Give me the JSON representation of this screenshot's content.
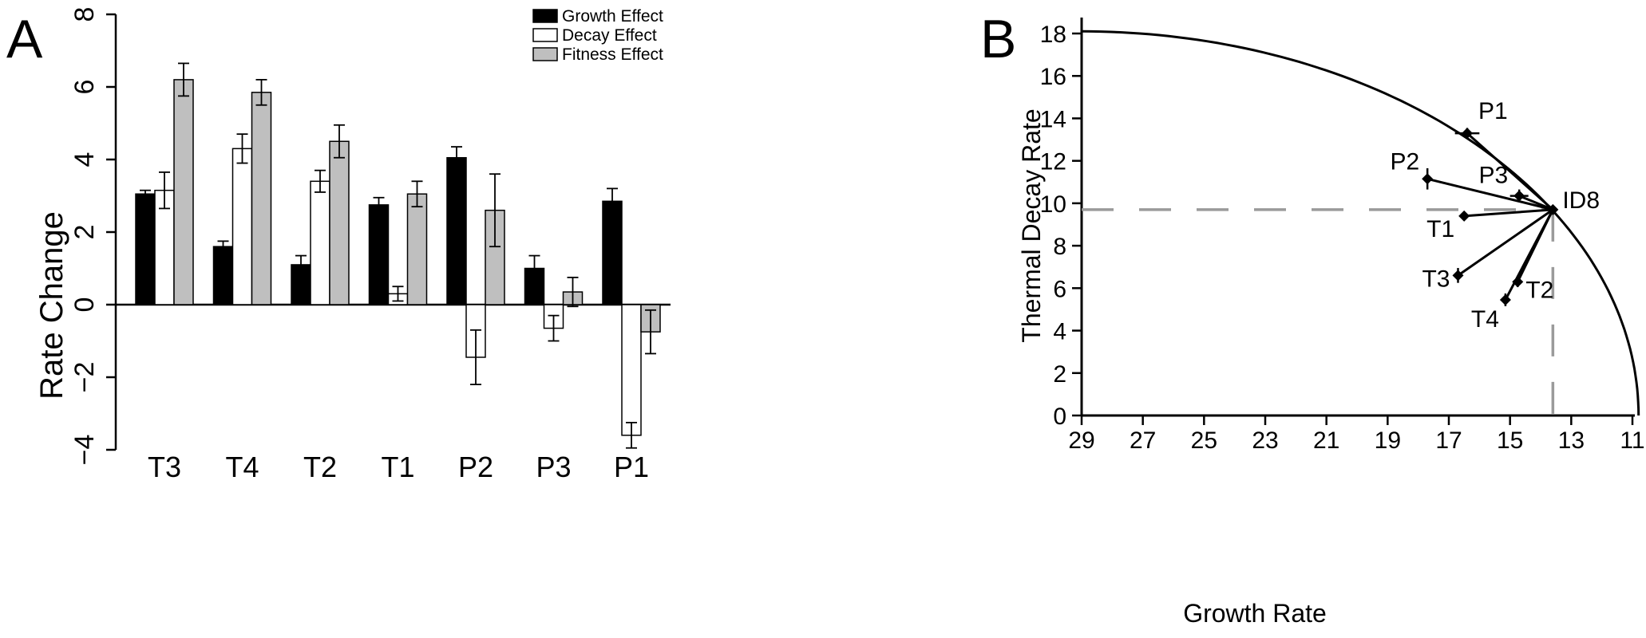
{
  "panel_labels": {
    "a": "A",
    "b": "B"
  },
  "colors": {
    "growth": "#000000",
    "decay": "#ffffff",
    "fitness": "#bfbfbf",
    "axis": "#000000",
    "dashed": "#9a9a9a"
  },
  "chart_data": [
    {
      "type": "bar",
      "title": "",
      "xlabel": "",
      "ylabel": "Rate Change",
      "ylim": [
        -4,
        8
      ],
      "yticks": [
        "8",
        "6",
        "4",
        "2",
        "0",
        "−2",
        "−4"
      ],
      "categories": [
        "T3",
        "T4",
        "T2",
        "T1",
        "P2",
        "P3",
        "P1"
      ],
      "series": [
        {
          "name": "Growth Effect",
          "values": [
            3.05,
            1.6,
            1.1,
            2.75,
            4.05,
            1.0,
            2.85
          ],
          "errors": [
            0.1,
            0.15,
            0.25,
            0.2,
            0.3,
            0.35,
            0.35
          ]
        },
        {
          "name": "Decay Effect",
          "values": [
            3.15,
            4.3,
            3.4,
            0.3,
            -1.45,
            -0.65,
            -3.6
          ],
          "errors": [
            0.5,
            0.4,
            0.3,
            0.2,
            0.75,
            0.35,
            0.35
          ]
        },
        {
          "name": "Fitness Effect",
          "values": [
            6.2,
            5.85,
            4.5,
            3.05,
            2.6,
            0.35,
            -0.75
          ],
          "errors": [
            0.45,
            0.35,
            0.45,
            0.35,
            1.0,
            0.4,
            0.6
          ]
        }
      ],
      "legend": "top-right",
      "grid": false
    },
    {
      "type": "scatter",
      "title": "",
      "xlabel": "Growth Rate",
      "ylabel": "Thermal Decay Rate",
      "xlim": [
        29,
        10.5
      ],
      "ylim": [
        0,
        18.8
      ],
      "x_reversed": true,
      "xticks": [
        29,
        27,
        25,
        23,
        21,
        19,
        17,
        15,
        13,
        11
      ],
      "yticks": [
        0,
        2,
        4,
        6,
        8,
        10,
        12,
        14,
        16,
        18
      ],
      "origin": {
        "name": "ID8",
        "x": 13.6,
        "y": 9.7
      },
      "points": [
        {
          "name": "P1",
          "x": 16.4,
          "y": 13.3,
          "xerr": 0.4,
          "yerr": 0.25
        },
        {
          "name": "P2",
          "x": 17.7,
          "y": 11.15,
          "xerr": 0.0,
          "yerr": 0.5
        },
        {
          "name": "P3",
          "x": 14.7,
          "y": 10.35,
          "xerr": 0.3,
          "yerr": 0.3
        },
        {
          "name": "T1",
          "x": 16.5,
          "y": 9.4,
          "xerr": 0.0,
          "yerr": 0.0
        },
        {
          "name": "T3",
          "x": 16.7,
          "y": 6.6,
          "xerr": 0.0,
          "yerr": 0.35
        },
        {
          "name": "T4",
          "x": 15.15,
          "y": 5.45,
          "xerr": 0.0,
          "yerr": 0.3
        },
        {
          "name": "T2",
          "x": 14.75,
          "y": 6.3,
          "xerr": 0.0,
          "yerr": 0.25
        }
      ],
      "boundary_curve": {
        "x_at_y0": 10.8,
        "y_at_x29": 18.1
      },
      "reference_lines": {
        "x": 13.6,
        "y": 9.7,
        "style": "dashed"
      },
      "grid": false
    }
  ]
}
